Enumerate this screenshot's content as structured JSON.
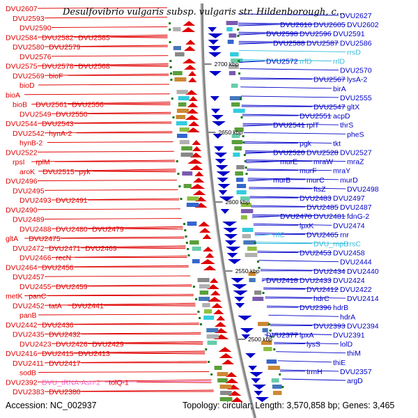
{
  "map": {
    "title": "Desulfovibrio vulgaris subsp. vulgaris str. Hildenborough, c...",
    "accession": "Accession: NC_002937",
    "summary": "Topology: circular; Length: 3,570,858 bp; Genes: 3,465"
  },
  "colors": {
    "minus_strand": "#e00000",
    "plus_strand": "#0000c8",
    "rna": "#33bbdd",
    "pseudo_trna": "#ee66cc",
    "backbone": "#888888"
  },
  "scale_marks": [
    "2700 kbp",
    "2650 kbp",
    "2600 kbp",
    "2550 kbp",
    "2500 kbp"
  ],
  "left_labels": [
    "DVU2607",
    "DVU2593",
    "DVU2590",
    "DVU2584",
    "DVU2582",
    "DVU2585",
    "DVU2580",
    "DVU2579",
    "DVU2576",
    "DVU2575",
    "DVU2578",
    "DVU2568",
    "DVU2569",
    "bioF",
    "bioD",
    "bioA",
    "bioB",
    "DVU2561",
    "DVU2556",
    "DVU2549",
    "DVU2550",
    "DVU2544",
    "DVU2543",
    "DVU2542",
    "hynA-2",
    "hynB-2",
    "DVU2522",
    "rpsI",
    "rplM",
    "aroK",
    "DVU2515",
    "pyk",
    "DVU2496",
    "DVU2495",
    "DVU2493",
    "DVU2491",
    "DVU2490",
    "DVU2489",
    "DVU2488",
    "DVU2480",
    "DVU2479",
    "gltA",
    "DVU2475",
    "DVU2472",
    "DVU2471",
    "DVU2469",
    "DVU2466",
    "recN",
    "DVU2464",
    "DVU2456",
    "DVU2457",
    "DVU2455",
    "DVU2459",
    "metK",
    "panC",
    "DVU2452",
    "tatA",
    "DVU2441",
    "panB",
    "DVU2442",
    "DVU2436",
    "DVU2435",
    "DVU2432",
    "DVU2423",
    "DVU2426",
    "DVU2429",
    "DVU2416",
    "DVU2415",
    "DVU2413",
    "DVU2411",
    "DVU2417",
    "sodB",
    "DVU2392",
    "DVU_tRNA-Asn-2",
    "tolQ-1",
    "DVU2383",
    "DVU2380"
  ],
  "right_labels": [
    "DVU2627",
    "DVU2602",
    "DVU2605",
    "DVU2610",
    "DVU2591",
    "DVU2596",
    "DVU2598",
    "DVU2586",
    "DVU2587",
    "DVU2588",
    "rrsD",
    "rrlD",
    "rrfD",
    "DVU2572",
    "DVU2570",
    "lysA-2",
    "DVU2567",
    "birA",
    "DVU2555",
    "gltX",
    "DVU2547",
    "acpD",
    "DVU2551",
    "thrS",
    "rplT",
    "DVU2541",
    "pheS",
    "tkt",
    "pgk",
    "DVU2527",
    "DVU2528",
    "DVU2520",
    "mraZ",
    "mraW",
    "murE",
    "mraY",
    "murF",
    "murD",
    "murC",
    "murB",
    "DVU2498",
    "ftsZ",
    "DVU2497",
    "DVU2483",
    "DVU2487",
    "DVU2485",
    "fdnG-2",
    "DVU2481",
    "DVU2470",
    "DVU2474",
    "lpxK",
    "rnr",
    "DVU2465",
    "rrlC",
    "rrsC",
    "DVU_rnpB",
    "DVU2458",
    "DVU2453",
    "DVU2444",
    "DVU2440",
    "DVU2434",
    "DVU2424",
    "DVU2433",
    "DVU2418",
    "DVU2422",
    "DVU2412",
    "DVU2414",
    "hdrC",
    "hdrB",
    "DVU2396",
    "hdrA",
    "DVU2394",
    "DVU2393",
    "DVU2391",
    "lpxA",
    "DVU2377",
    "lolD",
    "lysS",
    "thiM",
    "thiE",
    "DVU2357",
    "trmH",
    "argD"
  ]
}
